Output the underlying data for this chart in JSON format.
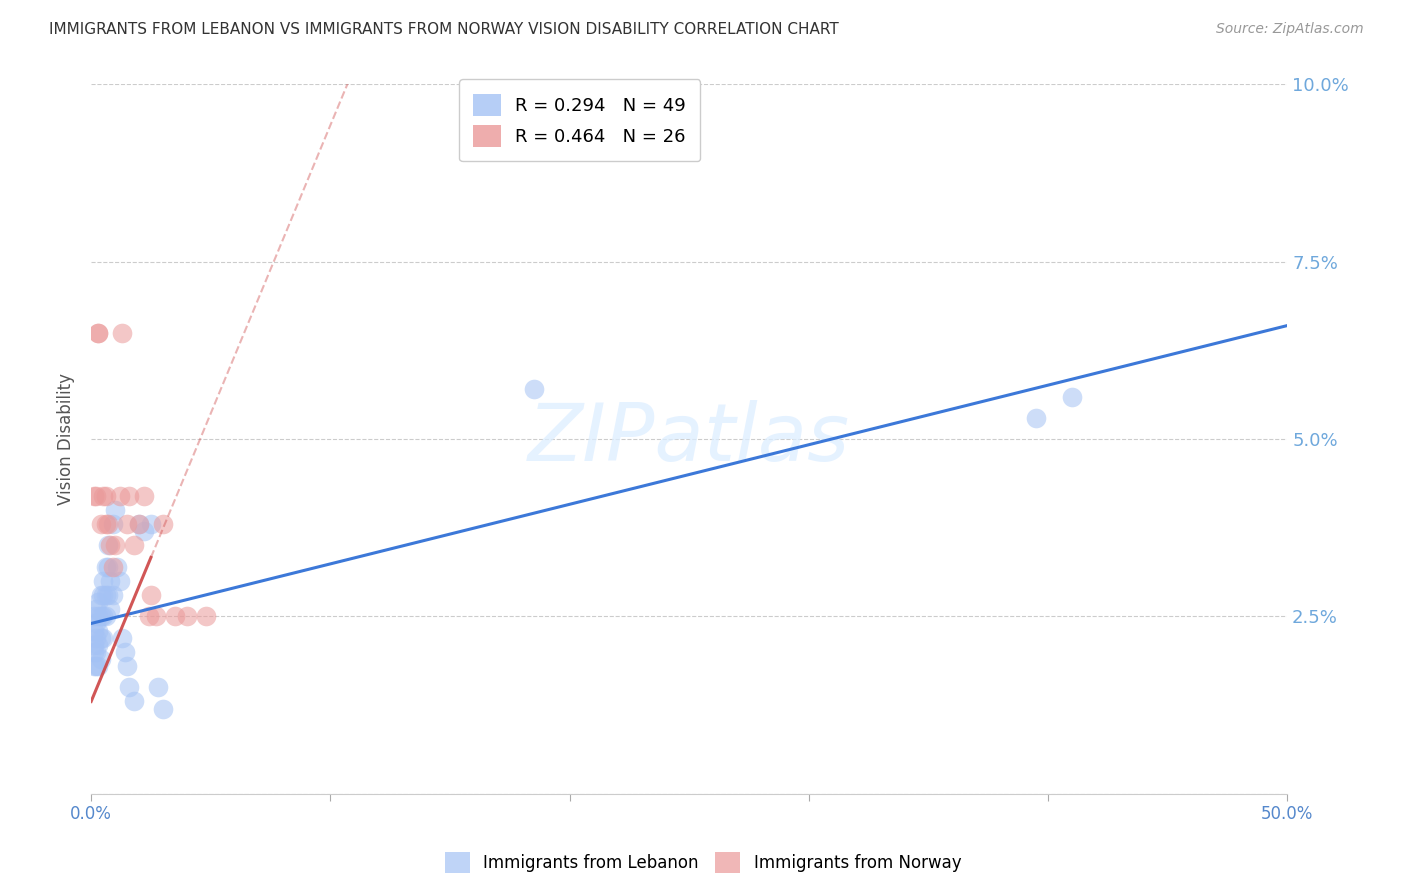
{
  "title": "IMMIGRANTS FROM LEBANON VS IMMIGRANTS FROM NORWAY VISION DISABILITY CORRELATION CHART",
  "source": "Source: ZipAtlas.com",
  "ylabel": "Vision Disability",
  "watermark": "ZIPatlas",
  "lebanon_R": 0.294,
  "lebanon_N": 49,
  "norway_R": 0.464,
  "norway_N": 26,
  "xlim": [
    0.0,
    0.5
  ],
  "ylim": [
    0.0,
    0.1
  ],
  "lebanon_color": "#a4c2f4",
  "norway_color": "#ea9999",
  "lebanon_line_color": "#3c78d8",
  "norway_line_color": "#cc4444",
  "background_color": "#ffffff",
  "grid_color": "#cccccc",
  "title_color": "#333333",
  "right_tick_color": "#6fa8dc",
  "lebanon_x": [
    0.001,
    0.001,
    0.001,
    0.001,
    0.001,
    0.002,
    0.002,
    0.002,
    0.002,
    0.002,
    0.003,
    0.003,
    0.003,
    0.003,
    0.003,
    0.004,
    0.004,
    0.004,
    0.004,
    0.005,
    0.005,
    0.005,
    0.005,
    0.006,
    0.006,
    0.006,
    0.007,
    0.007,
    0.007,
    0.008,
    0.008,
    0.009,
    0.009,
    0.01,
    0.011,
    0.012,
    0.013,
    0.014,
    0.015,
    0.016,
    0.018,
    0.02,
    0.022,
    0.025,
    0.028,
    0.03,
    0.185,
    0.395,
    0.41
  ],
  "lebanon_y": [
    0.025,
    0.023,
    0.021,
    0.02,
    0.018,
    0.026,
    0.024,
    0.022,
    0.02,
    0.018,
    0.027,
    0.025,
    0.023,
    0.021,
    0.018,
    0.028,
    0.025,
    0.022,
    0.019,
    0.03,
    0.028,
    0.025,
    0.022,
    0.032,
    0.028,
    0.025,
    0.035,
    0.032,
    0.028,
    0.03,
    0.026,
    0.038,
    0.028,
    0.04,
    0.032,
    0.03,
    0.022,
    0.02,
    0.018,
    0.015,
    0.013,
    0.038,
    0.037,
    0.038,
    0.015,
    0.012,
    0.057,
    0.053,
    0.056
  ],
  "norway_x": [
    0.001,
    0.002,
    0.003,
    0.003,
    0.004,
    0.005,
    0.006,
    0.006,
    0.007,
    0.008,
    0.009,
    0.01,
    0.012,
    0.013,
    0.015,
    0.016,
    0.018,
    0.02,
    0.022,
    0.024,
    0.025,
    0.027,
    0.03,
    0.035,
    0.04,
    0.048
  ],
  "norway_y": [
    0.042,
    0.042,
    0.065,
    0.065,
    0.038,
    0.042,
    0.038,
    0.042,
    0.038,
    0.035,
    0.032,
    0.035,
    0.042,
    0.065,
    0.038,
    0.042,
    0.035,
    0.038,
    0.042,
    0.025,
    0.028,
    0.025,
    0.038,
    0.025,
    0.025,
    0.025
  ],
  "leb_line_x0": 0.0,
  "leb_line_y0": 0.024,
  "leb_line_x1": 0.5,
  "leb_line_y1": 0.066,
  "nor_line_x0": 0.0,
  "nor_line_y0": 0.013,
  "nor_line_x1": 0.048,
  "nor_line_y1": 0.052
}
